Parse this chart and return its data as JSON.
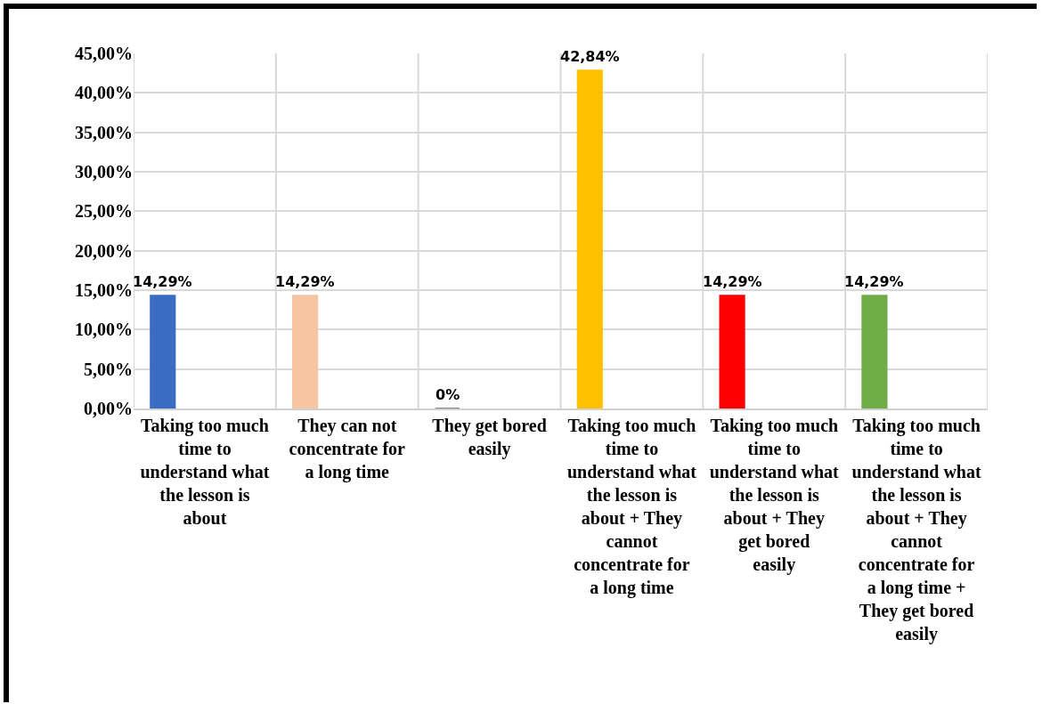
{
  "chart_data": {
    "type": "bar",
    "categories": [
      "Taking too much time to understand what the lesson is about",
      "They can not concentrate for a long time",
      "They get bored easily",
      "Taking too much time to understand what the lesson is about + They cannot concentrate for a long time",
      "Taking too much time to understand what the lesson is about + They get bored easily",
      "Taking too much time to understand what the lesson is about + They cannot concentrate for a long time + They get bored easily"
    ],
    "values": [
      14.29,
      14.29,
      0,
      42.84,
      14.29,
      14.29
    ],
    "colors": [
      "#3a6cc4",
      "#f6c5a2",
      "#7f7f7f",
      "#ffc000",
      "#ff0000",
      "#70ad47"
    ],
    "value_labels": [
      "14,29%",
      "14,29%",
      "0%",
      "42,84%",
      "14,29%",
      "14,29%"
    ],
    "ylim": [
      0,
      45
    ],
    "yticks": [
      {
        "value": 0,
        "label": "0,00%"
      },
      {
        "value": 5,
        "label": "5,00%"
      },
      {
        "value": 10,
        "label": "10,00%"
      },
      {
        "value": 15,
        "label": "15,00%"
      },
      {
        "value": 20,
        "label": "20,00%"
      },
      {
        "value": 25,
        "label": "25,00%"
      },
      {
        "value": 30,
        "label": "30,00%"
      },
      {
        "value": 35,
        "label": "35,00%"
      },
      {
        "value": 40,
        "label": "40,00%"
      },
      {
        "value": 45,
        "label": "45,00%"
      }
    ],
    "grid": true
  }
}
